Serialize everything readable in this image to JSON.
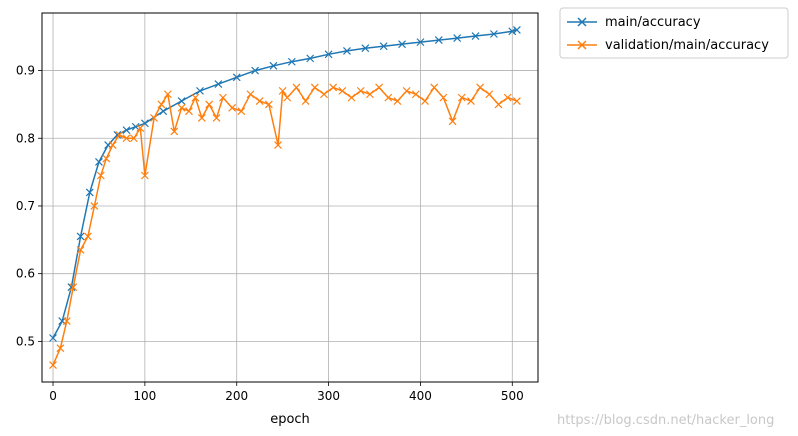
{
  "chart_data": {
    "type": "line",
    "title": "",
    "xlabel": "epoch",
    "ylabel": "",
    "xlim": [
      -12,
      528
    ],
    "ylim": [
      0.44,
      0.985
    ],
    "xticks": [
      0,
      100,
      200,
      300,
      400,
      500
    ],
    "yticks": [
      0.5,
      0.6,
      0.7,
      0.8,
      0.9
    ],
    "xtick_labels": [
      "0",
      "100",
      "200",
      "300",
      "400",
      "500"
    ],
    "ytick_labels": [
      "0.5",
      "0.6",
      "0.7",
      "0.8",
      "0.9"
    ],
    "grid": true,
    "legend_position": "outside-top-right",
    "marker": "x",
    "series": [
      {
        "name": "main/accuracy",
        "color": "#1f77b4",
        "x": [
          0,
          10,
          20,
          30,
          40,
          50,
          60,
          70,
          80,
          90,
          100,
          120,
          140,
          160,
          180,
          200,
          220,
          240,
          260,
          280,
          300,
          320,
          340,
          360,
          380,
          400,
          420,
          440,
          460,
          480,
          500,
          505
        ],
        "y": [
          0.505,
          0.53,
          0.58,
          0.655,
          0.72,
          0.765,
          0.79,
          0.805,
          0.812,
          0.817,
          0.822,
          0.84,
          0.855,
          0.87,
          0.88,
          0.89,
          0.9,
          0.907,
          0.913,
          0.918,
          0.924,
          0.929,
          0.933,
          0.936,
          0.939,
          0.942,
          0.945,
          0.948,
          0.951,
          0.954,
          0.958,
          0.96
        ]
      },
      {
        "name": "validation/main/accuracy",
        "color": "#ff7f0e",
        "x": [
          0,
          8,
          15,
          22,
          30,
          38,
          45,
          52,
          58,
          65,
          72,
          80,
          88,
          95,
          100,
          110,
          118,
          125,
          132,
          140,
          148,
          155,
          162,
          170,
          178,
          185,
          195,
          205,
          215,
          225,
          235,
          245,
          250,
          255,
          265,
          275,
          285,
          295,
          305,
          315,
          325,
          335,
          345,
          355,
          365,
          375,
          385,
          395,
          405,
          415,
          425,
          435,
          445,
          455,
          465,
          475,
          485,
          495,
          505
        ],
        "y": [
          0.465,
          0.49,
          0.53,
          0.58,
          0.635,
          0.655,
          0.7,
          0.745,
          0.77,
          0.79,
          0.805,
          0.8,
          0.8,
          0.815,
          0.745,
          0.83,
          0.85,
          0.865,
          0.81,
          0.845,
          0.84,
          0.86,
          0.83,
          0.85,
          0.83,
          0.86,
          0.845,
          0.84,
          0.865,
          0.855,
          0.85,
          0.79,
          0.87,
          0.86,
          0.875,
          0.855,
          0.875,
          0.865,
          0.875,
          0.87,
          0.86,
          0.87,
          0.865,
          0.875,
          0.86,
          0.855,
          0.87,
          0.865,
          0.855,
          0.875,
          0.86,
          0.825,
          0.86,
          0.855,
          0.875,
          0.865,
          0.85,
          0.86,
          0.855
        ]
      }
    ]
  },
  "watermark": "https://blog.csdn.net/hacker_long"
}
